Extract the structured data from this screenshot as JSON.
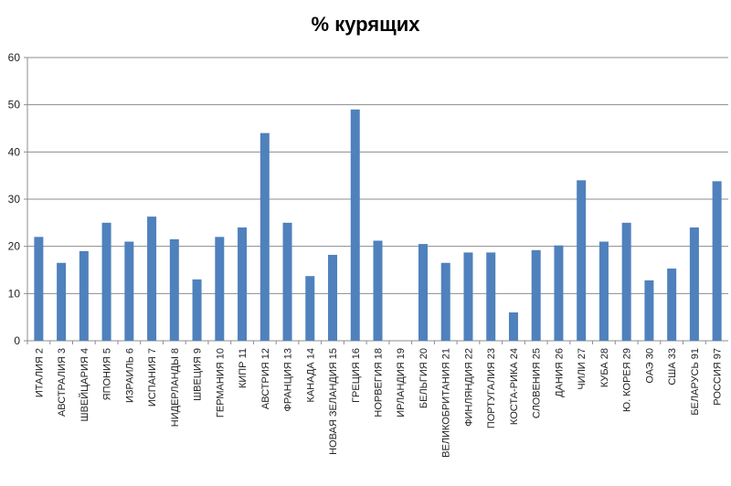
{
  "chart_data": {
    "type": "bar",
    "title": "%  курящих",
    "xlabel": "",
    "ylabel": "",
    "ylim": [
      0,
      60
    ],
    "yticks": [
      0,
      10,
      20,
      30,
      40,
      50,
      60
    ],
    "grid": true,
    "legend": "none",
    "bar_color": "#4F81BD",
    "categories": [
      "ИТАЛИЯ 2",
      "АВСТРАЛИЯ 3",
      "ШВЕЙЦАРИЯ 4",
      "ЯПОНИЯ 5",
      "ИЗРАИЛЬ 6",
      "ИСПАНИЯ 7",
      "НИДЕРЛАНДЫ 8",
      "ШВЕЦИЯ 9",
      "ГЕРМАНИЯ 10",
      "КИПР 11",
      "АВСТРИЯ 12",
      "ФРАНЦИЯ 13",
      "КАНАДА 14",
      "НОВАЯ ЗЕЛАНДИЯ 15",
      "ГРЕЦИЯ 16",
      "НОРВЕГИЯ 18",
      "ИРЛАНДИЯ 19",
      "БЕЛЬГИЯ 20",
      "ВЕЛИКОБРИТАНИЯ 21",
      "ФИНЛЯНДИЯ 22",
      "ПОРТУГАЛИЯ 23",
      "КОСТА-РИКА 24",
      "СЛОВЕНИЯ 25",
      "ДАНИЯ 26",
      "ЧИЛИ 27",
      "КУБА 28",
      "Ю. КОРЕЯ 29",
      "ОАЭ 30",
      "США 33",
      "БЕЛАРУСЬ 91",
      "РОССИЯ 97"
    ],
    "values": [
      22,
      16.5,
      19,
      25,
      21,
      26.3,
      21.5,
      13,
      22,
      24,
      44,
      25,
      13.7,
      18.2,
      49,
      21.2,
      null,
      20.5,
      16.5,
      18.7,
      18.7,
      6,
      19.2,
      20.2,
      34,
      21,
      25,
      12.8,
      15.3,
      24,
      33.8
    ]
  }
}
